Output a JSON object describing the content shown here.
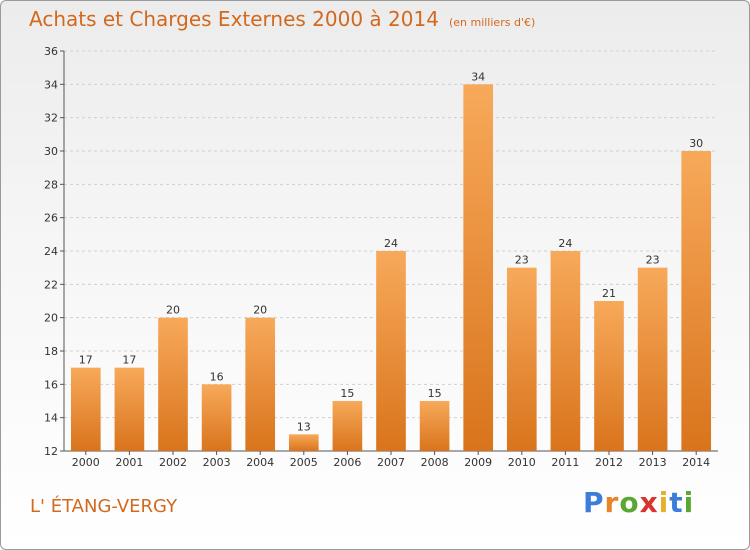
{
  "title": "Achats et Charges Externes 2000 à 2014",
  "unit": "(en milliers d'€)",
  "location": "L' ÉTANG-VERGY",
  "logo": {
    "text": "Proxiti",
    "letters": [
      {
        "ch": "P",
        "color": "#3b7dd8"
      },
      {
        "ch": "r",
        "color": "#e8832a"
      },
      {
        "ch": "o",
        "color": "#5aa832"
      },
      {
        "ch": "x",
        "color": "#d9342b"
      },
      {
        "ch": "i",
        "color": "#e8b02a"
      },
      {
        "ch": "t",
        "color": "#3b7dd8"
      },
      {
        "ch": "i",
        "color": "#5aa832"
      }
    ]
  },
  "chart_data": {
    "type": "bar",
    "categories": [
      "2000",
      "2001",
      "2002",
      "2003",
      "2004",
      "2005",
      "2006",
      "2007",
      "2008",
      "2009",
      "2010",
      "2011",
      "2012",
      "2013",
      "2014"
    ],
    "values": [
      17,
      17,
      20,
      16,
      20,
      13,
      15,
      24,
      15,
      34,
      23,
      24,
      21,
      23,
      30
    ],
    "ylim": [
      12,
      36
    ],
    "yticks": [
      12,
      14,
      16,
      18,
      20,
      22,
      24,
      26,
      28,
      30,
      32,
      34,
      36
    ],
    "grid": true,
    "bar_color_light": "#f7a95a",
    "bar_color_dark": "#d9741c"
  }
}
